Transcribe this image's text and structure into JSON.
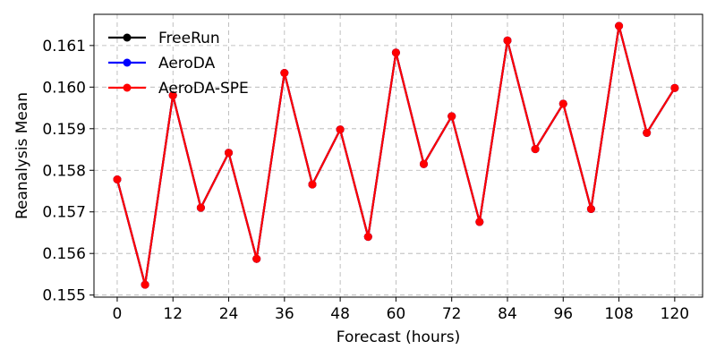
{
  "chart_data": {
    "type": "line",
    "title": "",
    "xlabel": "Forecast (hours)",
    "ylabel": "Reanalysis Mean",
    "xlim": [
      -5,
      126
    ],
    "ylim": [
      0.15495,
      0.16175
    ],
    "xticks": [
      0,
      12,
      24,
      36,
      48,
      60,
      72,
      84,
      96,
      108,
      120
    ],
    "yticks": [
      0.155,
      0.156,
      0.157,
      0.158,
      0.159,
      0.16,
      0.161
    ],
    "grid": true,
    "legend_position": "top-left",
    "x": [
      0,
      6,
      12,
      18,
      24,
      30,
      36,
      42,
      48,
      54,
      60,
      66,
      72,
      78,
      84,
      90,
      96,
      102,
      108,
      114,
      120
    ],
    "series": [
      {
        "name": "FreeRun",
        "color": "#000000",
        "values": [
          0.15778,
          0.15525,
          0.1598,
          0.1571,
          0.15842,
          0.15587,
          0.16034,
          0.15766,
          0.15898,
          0.1564,
          0.16083,
          0.15815,
          0.1593,
          0.15676,
          0.16112,
          0.15851,
          0.1596,
          0.15707,
          0.16147,
          0.1589,
          0.15998
        ]
      },
      {
        "name": "AeroDA",
        "color": "#0000ff",
        "values": [
          0.15778,
          0.15525,
          0.1598,
          0.1571,
          0.15842,
          0.15587,
          0.16034,
          0.15766,
          0.15898,
          0.1564,
          0.16083,
          0.15815,
          0.1593,
          0.15676,
          0.16112,
          0.15851,
          0.1596,
          0.15707,
          0.16147,
          0.1589,
          0.15998
        ]
      },
      {
        "name": "AeroDA-SPE",
        "color": "#ff0000",
        "values": [
          0.15778,
          0.15525,
          0.1598,
          0.1571,
          0.15842,
          0.15587,
          0.16034,
          0.15766,
          0.15898,
          0.1564,
          0.16083,
          0.15815,
          0.1593,
          0.15676,
          0.16112,
          0.15851,
          0.1596,
          0.15707,
          0.16147,
          0.1589,
          0.15998
        ]
      }
    ]
  }
}
